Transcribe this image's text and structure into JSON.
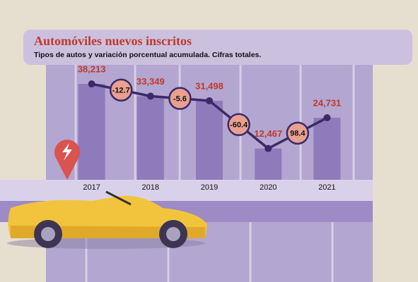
{
  "chart_data": {
    "type": "bar",
    "title": "Automóviles nuevos inscritos",
    "subtitle": "Tipos de  autos y variación porcentual acumulada. Cifras totales.",
    "categories": [
      "2017",
      "2018",
      "2019",
      "2020",
      "2021"
    ],
    "values": [
      38213,
      33349,
      31498,
      12467,
      24731
    ],
    "value_labels": [
      "38,213",
      "33,349",
      "31,498",
      "12,467",
      "24,731"
    ],
    "changes": [
      -12.7,
      -5.6,
      -60.4,
      98.4
    ],
    "color": "#8e7bbb",
    "line_color": "#3b2a68",
    "ylim": [
      0,
      52000
    ]
  }
}
